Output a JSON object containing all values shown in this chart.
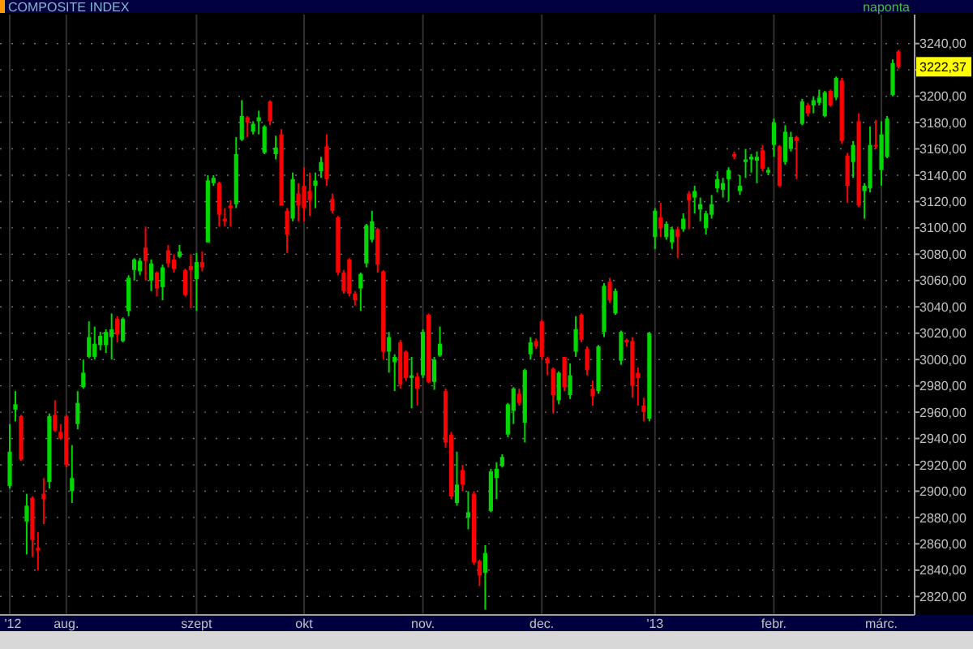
{
  "chart_data": {
    "type": "candlestick",
    "title": "COMPOSITE INDEX",
    "subtitle": "naponta",
    "categories": [
      "'12",
      null,
      null,
      null,
      null,
      null,
      null,
      null,
      null,
      null,
      "aug.",
      null,
      null,
      null,
      null,
      null,
      null,
      null,
      null,
      null,
      null,
      null,
      null,
      null,
      null,
      null,
      null,
      null,
      null,
      null,
      null,
      null,
      null,
      "szept",
      null,
      null,
      null,
      null,
      null,
      null,
      null,
      null,
      null,
      null,
      null,
      null,
      null,
      null,
      null,
      null,
      null,
      null,
      "okt",
      null,
      null,
      null,
      null,
      null,
      null,
      null,
      null,
      null,
      null,
      null,
      null,
      null,
      null,
      null,
      null,
      null,
      null,
      null,
      null,
      "nov.",
      null,
      null,
      null,
      null,
      null,
      null,
      null,
      null,
      null,
      null,
      null,
      null,
      null,
      null,
      null,
      null,
      null,
      null,
      null,
      null,
      "dec.",
      null,
      null,
      null,
      null,
      null,
      null,
      null,
      null,
      null,
      null,
      null,
      null,
      null,
      null,
      null,
      null,
      null,
      null,
      null,
      "'13",
      null,
      null,
      null,
      null,
      null,
      null,
      null,
      null,
      null,
      null,
      null,
      null,
      null,
      null,
      null,
      null,
      null,
      null,
      null,
      null,
      "febr.",
      null,
      null,
      null,
      null,
      null,
      null,
      null,
      null,
      null,
      null,
      null,
      null,
      null,
      null,
      null,
      null,
      null,
      null,
      "márc.",
      null,
      null,
      null
    ],
    "ohlc": [
      [
        2904,
        2951,
        2902,
        2930
      ],
      [
        2962,
        2976,
        2953,
        2966
      ],
      [
        2957,
        2958,
        2923,
        2924
      ],
      [
        2877,
        2898,
        2852,
        2889
      ],
      [
        2895,
        2896,
        2850,
        2863
      ],
      [
        2857,
        2869,
        2840,
        2855
      ],
      [
        2898,
        2910,
        2875,
        2894
      ],
      [
        2907,
        2959,
        2902,
        2957
      ],
      [
        2958,
        2969,
        2945,
        2946
      ],
      [
        2945,
        2951,
        2939,
        2940
      ],
      [
        2957,
        2958,
        2918,
        2920
      ],
      [
        2900,
        2935,
        2891,
        2910
      ],
      [
        2951,
        2976,
        2947,
        2967
      ],
      [
        2979,
        3000,
        2978,
        2990
      ],
      [
        3002,
        3029,
        3001,
        3017
      ],
      [
        3002,
        3025,
        3000,
        3012
      ],
      [
        3011,
        3021,
        3007,
        3018
      ],
      [
        3011,
        3023,
        3005,
        3021
      ],
      [
        3017,
        3035,
        3000,
        3023
      ],
      [
        3031,
        3033,
        3013,
        3019
      ],
      [
        3014,
        3032,
        3013,
        3031
      ],
      [
        3037,
        3064,
        3033,
        3062
      ],
      [
        3068,
        3077,
        3060,
        3076
      ],
      [
        3067,
        3077,
        3064,
        3075
      ],
      [
        3085,
        3101,
        3060,
        3075
      ],
      [
        3060,
        3076,
        3052,
        3073
      ],
      [
        3066,
        3067,
        3048,
        3054
      ],
      [
        3055,
        3072,
        3045,
        3070
      ],
      [
        3083,
        3087,
        3070,
        3073
      ],
      [
        3076,
        3080,
        3066,
        3069
      ],
      [
        3078,
        3087,
        3077,
        3082
      ],
      [
        3068,
        3069,
        3048,
        3049
      ],
      [
        3071,
        3080,
        3039,
        3068
      ],
      [
        3061,
        3081,
        3037,
        3074
      ],
      [
        3074,
        3082,
        3067,
        3070
      ],
      [
        3089,
        3140,
        3089,
        3136
      ],
      [
        3134,
        3140,
        3132,
        3138
      ],
      [
        3134,
        3135,
        3101,
        3110
      ],
      [
        3107,
        3115,
        3101,
        3105
      ],
      [
        3117,
        3121,
        3101,
        3115
      ],
      [
        3118,
        3169,
        3115,
        3156
      ],
      [
        3167,
        3197,
        3166,
        3185
      ],
      [
        3184,
        3185,
        3169,
        3180
      ],
      [
        3173,
        3181,
        3171,
        3179
      ],
      [
        3181,
        3189,
        3171,
        3184
      ],
      [
        3157,
        3178,
        3156,
        3177
      ],
      [
        3196,
        3197,
        3178,
        3181
      ],
      [
        3156,
        3170,
        3152,
        3161
      ],
      [
        3171,
        3175,
        3117,
        3117
      ],
      [
        3113,
        3115,
        3081,
        3095
      ],
      [
        3107,
        3142,
        3105,
        3137
      ],
      [
        3126,
        3134,
        3105,
        3117
      ],
      [
        3132,
        3146,
        3105,
        3115
      ],
      [
        3128,
        3142,
        3109,
        3121
      ],
      [
        3132,
        3142,
        3115,
        3136
      ],
      [
        3143,
        3154,
        3138,
        3150
      ],
      [
        3162,
        3171,
        3132,
        3137
      ],
      [
        3122,
        3126,
        3111,
        3113
      ],
      [
        3108,
        3109,
        3064,
        3066
      ],
      [
        3066,
        3068,
        3050,
        3052
      ],
      [
        3076,
        3077,
        3048,
        3050
      ],
      [
        3050,
        3052,
        3041,
        3045
      ],
      [
        3054,
        3066,
        3037,
        3065
      ],
      [
        3073,
        3103,
        3070,
        3102
      ],
      [
        3091,
        3113,
        3089,
        3105
      ],
      [
        3099,
        3100,
        3066,
        3072
      ],
      [
        3067,
        3068,
        3000,
        3006
      ],
      [
        3006,
        3021,
        2990,
        3017
      ],
      [
        2998,
        3004,
        2976,
        3002
      ],
      [
        3013,
        3015,
        2978,
        2981
      ],
      [
        3006,
        3007,
        2984,
        2986
      ],
      [
        2986,
        3002,
        2963,
        2988
      ],
      [
        2987,
        2990,
        2965,
        2978
      ],
      [
        2988,
        3023,
        2986,
        3021
      ],
      [
        3034,
        3035,
        2982,
        2983
      ],
      [
        2983,
        3002,
        2977,
        3000
      ],
      [
        3003,
        3025,
        3002,
        3012
      ],
      [
        2976,
        2978,
        2933,
        2937
      ],
      [
        2943,
        2945,
        2894,
        2896
      ],
      [
        2891,
        2930,
        2889,
        2905
      ],
      [
        2916,
        2920,
        2900,
        2905
      ],
      [
        2880,
        2900,
        2871,
        2884
      ],
      [
        2898,
        2900,
        2844,
        2846
      ],
      [
        2847,
        2848,
        2828,
        2836
      ],
      [
        2838,
        2859,
        2810,
        2853
      ],
      [
        2885,
        2917,
        2884,
        2915
      ],
      [
        2910,
        2922,
        2894,
        2917
      ],
      [
        2919,
        2928,
        2918,
        2926
      ],
      [
        2943,
        2967,
        2941,
        2966
      ],
      [
        2961,
        2979,
        2951,
        2978
      ],
      [
        2974,
        2978,
        2965,
        2967
      ],
      [
        2952,
        2993,
        2937,
        2992
      ],
      [
        3004,
        3017,
        3000,
        3013
      ],
      [
        3014,
        3016,
        3008,
        3010
      ],
      [
        3029,
        3030,
        3000,
        3002
      ],
      [
        3001,
        3002,
        2988,
        2997
      ],
      [
        2993,
        2994,
        2959,
        2973
      ],
      [
        2969,
        2991,
        2966,
        2990
      ],
      [
        3002,
        3002,
        2976,
        2979
      ],
      [
        2973,
        2997,
        2970,
        2988
      ],
      [
        3006,
        3033,
        3002,
        3023
      ],
      [
        3034,
        3035,
        3013,
        3015
      ],
      [
        3008,
        3010,
        2988,
        2992
      ],
      [
        2978,
        2984,
        2965,
        2972
      ],
      [
        2976,
        3011,
        2974,
        3010
      ],
      [
        3021,
        3058,
        3017,
        3056
      ],
      [
        3059,
        3062,
        3043,
        3045
      ],
      [
        3035,
        3054,
        3034,
        3052
      ],
      [
        2999,
        3022,
        2996,
        3021
      ],
      [
        3015,
        3016,
        3010,
        3013
      ],
      [
        3014,
        3017,
        2971,
        2980
      ],
      [
        2990,
        2994,
        2965,
        2986
      ],
      [
        2965,
        2971,
        2953,
        2960
      ],
      [
        2955,
        3021,
        2953,
        3020
      ],
      [
        3093,
        3115,
        3084,
        3113
      ],
      [
        3108,
        3119,
        3093,
        3100
      ],
      [
        3093,
        3105,
        3091,
        3103
      ],
      [
        3089,
        3101,
        3084,
        3099
      ],
      [
        3099,
        3101,
        3077,
        3093
      ],
      [
        3099,
        3111,
        3097,
        3107
      ],
      [
        3126,
        3128,
        3099,
        3121
      ],
      [
        3123,
        3132,
        3111,
        3128
      ],
      [
        3114,
        3123,
        3105,
        3118
      ],
      [
        3100,
        3113,
        3095,
        3111
      ],
      [
        3110,
        3125,
        3107,
        3118
      ],
      [
        3130,
        3143,
        3127,
        3137
      ],
      [
        3129,
        3138,
        3123,
        3134
      ],
      [
        3137,
        3146,
        3120,
        3144
      ],
      [
        3156,
        3158,
        3152,
        3154
      ],
      [
        3128,
        3140,
        3125,
        3132
      ],
      [
        3150,
        3160,
        3138,
        3152
      ],
      [
        3152,
        3156,
        3142,
        3154
      ],
      [
        3151,
        3158,
        3134,
        3154
      ],
      [
        3159,
        3163,
        3143,
        3145
      ],
      [
        3142,
        3146,
        3140,
        3144
      ],
      [
        3163,
        3183,
        3154,
        3180
      ],
      [
        3162,
        3163,
        3131,
        3132
      ],
      [
        3150,
        3178,
        3148,
        3173
      ],
      [
        3160,
        3173,
        3158,
        3169
      ],
      [
        3169,
        3170,
        3137,
        3166
      ],
      [
        3179,
        3198,
        3178,
        3196
      ],
      [
        3193,
        3195,
        3185,
        3187
      ],
      [
        3193,
        3200,
        3187,
        3197
      ],
      [
        3195,
        3205,
        3193,
        3199
      ],
      [
        3185,
        3204,
        3184,
        3203
      ],
      [
        3204,
        3205,
        3192,
        3193
      ],
      [
        3199,
        3215,
        3197,
        3214
      ],
      [
        3212,
        3214,
        3164,
        3166
      ],
      [
        3155,
        3157,
        3119,
        3132
      ],
      [
        3150,
        3166,
        3138,
        3163
      ],
      [
        3181,
        3187,
        3116,
        3117
      ],
      [
        3128,
        3134,
        3107,
        3132
      ],
      [
        3130,
        3177,
        3127,
        3163
      ],
      [
        3163,
        3182,
        3160,
        3162
      ],
      [
        3144,
        3181,
        3132,
        3171
      ],
      [
        3154,
        3185,
        3153,
        3183
      ],
      [
        3201,
        3228,
        3200,
        3225
      ],
      [
        3234,
        3235,
        3221,
        3222.37
      ]
    ],
    "colors": [
      "#00d800",
      "#00d800",
      "#ff0000",
      "#00d800",
      "#ff0000",
      "#ff0000",
      "#ff0000",
      "#00d800",
      "#ff0000",
      "#ff0000",
      "#ff0000",
      "#00d800",
      "#00d800",
      "#00d800",
      "#00d800",
      "#00d800",
      "#00d800",
      "#00d800",
      "#00d800",
      "#ff0000",
      "#00d800",
      "#00d800",
      "#00d800",
      "#00d800",
      "#ff0000",
      "#00d800",
      "#ff0000",
      "#00d800",
      "#ff0000",
      "#ff0000",
      "#00d800",
      "#ff0000",
      "#ff0000",
      "#00d800",
      "#ff0000",
      "#00d800",
      "#00d800",
      "#ff0000",
      "#ff0000",
      "#ff0000",
      "#00d800",
      "#00d800",
      "#ff0000",
      "#00d800",
      "#00d800",
      "#00d800",
      "#ff0000",
      "#00d800",
      "#ff0000",
      "#ff0000",
      "#00d800",
      "#ff0000",
      "#ff0000",
      "#ff0000",
      "#00d800",
      "#00d800",
      "#ff0000",
      "#ff0000",
      "#ff0000",
      "#ff0000",
      "#ff0000",
      "#ff0000",
      "#00d800",
      "#00d800",
      "#00d800",
      "#ff0000",
      "#ff0000",
      "#00d800",
      "#00d800",
      "#ff0000",
      "#ff0000",
      "#00d800",
      "#ff0000",
      "#00d800",
      "#ff0000",
      "#00d800",
      "#00d800",
      "#ff0000",
      "#ff0000",
      "#00d800",
      "#ff0000",
      "#00d800",
      "#ff0000",
      "#ff0000",
      "#00d800",
      "#00d800",
      "#00d800",
      "#00d800",
      "#00d800",
      "#00d800",
      "#ff0000",
      "#00d800",
      "#00d800",
      "#ff0000",
      "#ff0000",
      "#ff0000",
      "#ff0000",
      "#00d800",
      "#ff0000",
      "#00d800",
      "#00d800",
      "#ff0000",
      "#ff0000",
      "#ff0000",
      "#00d800",
      "#00d800",
      "#ff0000",
      "#00d800",
      "#00d800",
      "#ff0000",
      "#ff0000",
      "#ff0000",
      "#ff0000",
      "#00d800",
      "#00d800",
      "#ff0000",
      "#00d800",
      "#00d800",
      "#ff0000",
      "#00d800",
      "#ff0000",
      "#00d800",
      "#00d800",
      "#00d800",
      "#00d800",
      "#00d800",
      "#00d800",
      "#00d800",
      "#ff0000",
      "#00d800",
      "#00d800",
      "#00d800",
      "#00d800",
      "#ff0000",
      "#00d800",
      "#00d800",
      "#ff0000",
      "#00d800",
      "#00d800",
      "#ff0000",
      "#00d800",
      "#ff0000",
      "#00d800",
      "#00d800",
      "#00d800",
      "#ff0000",
      "#00d800",
      "#ff0000",
      "#ff0000",
      "#00d800",
      "#ff0000",
      "#00d800",
      "#00d800",
      "#ff0000",
      "#00d800",
      "#00d800",
      "#00d800",
      "#ff0000"
    ],
    "ylim": [
      2806,
      3262
    ],
    "yticks": [
      {
        "value": 2820,
        "label": "2820,00"
      },
      {
        "value": 2840,
        "label": "2840,00"
      },
      {
        "value": 2860,
        "label": "2860,00"
      },
      {
        "value": 2880,
        "label": "2880,00"
      },
      {
        "value": 2900,
        "label": "2900,00"
      },
      {
        "value": 2920,
        "label": "2920,00"
      },
      {
        "value": 2940,
        "label": "2940,00"
      },
      {
        "value": 2960,
        "label": "2960,00"
      },
      {
        "value": 2980,
        "label": "2980,00"
      },
      {
        "value": 3000,
        "label": "3000,00"
      },
      {
        "value": 3020,
        "label": "3020,00"
      },
      {
        "value": 3040,
        "label": "3040,00"
      },
      {
        "value": 3060,
        "label": "3060,00"
      },
      {
        "value": 3080,
        "label": "3080,00"
      },
      {
        "value": 3100,
        "label": "3100,00"
      },
      {
        "value": 3120,
        "label": "3120,00"
      },
      {
        "value": 3140,
        "label": "3140,00"
      },
      {
        "value": 3160,
        "label": "3160,00"
      },
      {
        "value": 3180,
        "label": "3180,00"
      },
      {
        "value": 3200,
        "label": "3200,00"
      },
      {
        "value": 3220,
        "label": null
      },
      {
        "value": 3240,
        "label": "3240,00"
      }
    ],
    "grid": true,
    "annotations": [
      "3222,37"
    ]
  }
}
